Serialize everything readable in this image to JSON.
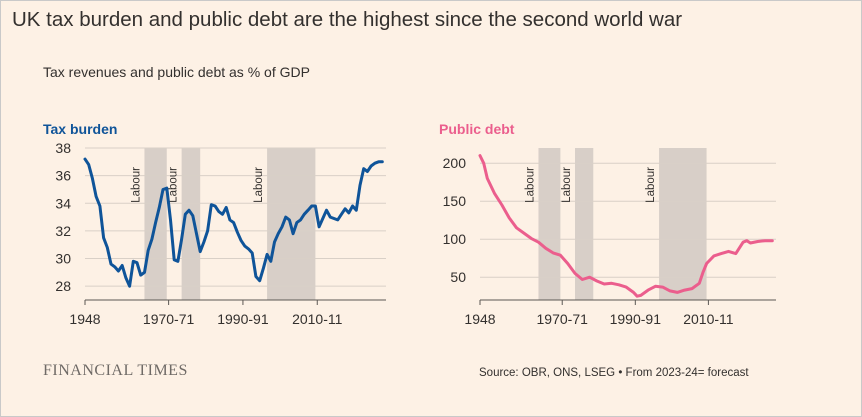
{
  "title": "UK tax burden and public debt are the highest since the second world war",
  "subtitle": "Tax revenues and public debt as % of GDP",
  "brand": "FINANCIAL TIMES",
  "source": "Source: OBR, ONS, LSEG • From 2023-24= forecast",
  "colors": {
    "background": "#fdf1e5",
    "tax": "#0f5499",
    "debt": "#eb5e8d",
    "shade": "#d8cfc8",
    "grid": "#d9d0c7",
    "text": "#33302e"
  },
  "chart_data": [
    {
      "type": "line",
      "title": "Tax burden",
      "ylim": [
        27,
        38
      ],
      "xlim": [
        1948,
        2029
      ],
      "yticks": [
        28,
        30,
        32,
        34,
        36,
        38
      ],
      "xticks": [
        {
          "value": 1948,
          "label": "1948"
        },
        {
          "value": 1970.5,
          "label": "1970-71"
        },
        {
          "value": 1990.5,
          "label": "1990-91"
        },
        {
          "value": 2010.5,
          "label": "2010-11"
        }
      ],
      "shaded_periods": [
        {
          "start": 1964,
          "end": 1970,
          "label": "Labour"
        },
        {
          "start": 1974,
          "end": 1979,
          "label": "Labour"
        },
        {
          "start": 1997,
          "end": 2010,
          "label": "Labour"
        }
      ],
      "series": [
        {
          "x": [
            1948,
            1949,
            1950,
            1951,
            1952,
            1953,
            1954,
            1955,
            1956,
            1957,
            1958,
            1959,
            1960,
            1961,
            1962,
            1963,
            1964,
            1965,
            1966,
            1967,
            1968,
            1969,
            1970,
            1971,
            1972,
            1973,
            1974,
            1975,
            1976,
            1977,
            1978,
            1979,
            1980,
            1981,
            1982,
            1983,
            1984,
            1985,
            1986,
            1987,
            1988,
            1989,
            1990,
            1991,
            1992,
            1993,
            1994,
            1995,
            1996,
            1997,
            1998,
            1999,
            2000,
            2001,
            2002,
            2003,
            2004,
            2005,
            2006,
            2007,
            2008,
            2009,
            2010,
            2011,
            2012,
            2013,
            2014,
            2015,
            2016,
            2017,
            2018,
            2019,
            2020,
            2021,
            2022,
            2023,
            2024,
            2025,
            2026,
            2027,
            2028
          ],
          "values": [
            37.2,
            36.8,
            35.8,
            34.5,
            33.8,
            31.5,
            30.8,
            29.6,
            29.4,
            29.1,
            29.5,
            28.6,
            28.0,
            29.8,
            29.7,
            28.8,
            29.0,
            30.6,
            31.4,
            32.6,
            33.7,
            35.0,
            35.1,
            32.8,
            29.9,
            29.8,
            31.4,
            33.2,
            33.5,
            33.1,
            31.8,
            30.5,
            31.2,
            32.0,
            33.9,
            33.8,
            33.4,
            33.2,
            33.7,
            32.8,
            32.6,
            31.9,
            31.3,
            30.9,
            30.7,
            30.4,
            28.7,
            28.4,
            29.3,
            30.3,
            29.8,
            31.2,
            31.8,
            32.3,
            33.0,
            32.8,
            31.8,
            32.6,
            32.8,
            33.2,
            33.5,
            33.8,
            33.8,
            32.3,
            32.9,
            33.5,
            33.0,
            32.9,
            32.8,
            33.2,
            33.6,
            33.3,
            33.8,
            33.5,
            35.3,
            36.5,
            36.3,
            36.7,
            36.9,
            37.0,
            37.0
          ]
        }
      ]
    },
    {
      "type": "line",
      "title": "Public debt",
      "ylim": [
        20,
        220
      ],
      "xlim": [
        1948,
        2029
      ],
      "yticks": [
        50,
        100,
        150,
        200
      ],
      "xticks": [
        {
          "value": 1948,
          "label": "1948"
        },
        {
          "value": 1970.5,
          "label": "1970-71"
        },
        {
          "value": 1990.5,
          "label": "1990-91"
        },
        {
          "value": 2010.5,
          "label": "2010-11"
        }
      ],
      "shaded_periods": [
        {
          "start": 1964,
          "end": 1970,
          "label": "Labour"
        },
        {
          "start": 1974,
          "end": 1979,
          "label": "Labour"
        },
        {
          "start": 1997,
          "end": 2010,
          "label": "Labour"
        }
      ],
      "series": [
        {
          "x": [
            1948,
            1949,
            1950,
            1952,
            1954,
            1956,
            1958,
            1960,
            1962,
            1964,
            1966,
            1968,
            1970,
            1972,
            1974,
            1976,
            1978,
            1980,
            1982,
            1984,
            1986,
            1988,
            1990,
            1991,
            1992,
            1994,
            1996,
            1998,
            2000,
            2002,
            2004,
            2006,
            2008,
            2009,
            2010,
            2012,
            2014,
            2016,
            2018,
            2020,
            2021,
            2022,
            2024,
            2026,
            2028
          ],
          "values": [
            210,
            200,
            180,
            160,
            145,
            128,
            115,
            108,
            101,
            96,
            88,
            82,
            79,
            68,
            55,
            47,
            50,
            45,
            41,
            42,
            40,
            37,
            30,
            25,
            26,
            33,
            38,
            37,
            32,
            30,
            33,
            35,
            42,
            56,
            68,
            78,
            81,
            84,
            81,
            96,
            98,
            95,
            97,
            98,
            98
          ]
        }
      ]
    }
  ]
}
